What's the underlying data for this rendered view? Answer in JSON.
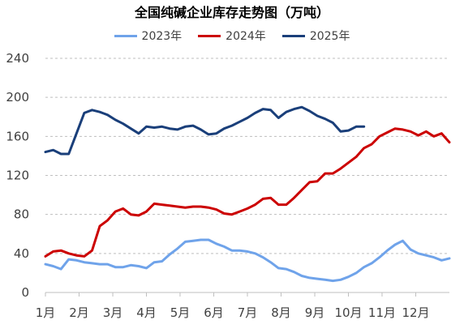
{
  "chart_data": {
    "type": "line",
    "title": "全国纯碱企业库存走势图（万吨）",
    "xlabel": "",
    "ylabel": "",
    "ylim": [
      0,
      240
    ],
    "yticks": [
      0,
      40,
      80,
      120,
      160,
      200,
      240
    ],
    "xlim": [
      0,
      52
    ],
    "x_tick_labels": [
      "1月",
      "2月",
      "3月",
      "4月",
      "5月",
      "6月",
      "7月",
      "8月",
      "9月",
      "10月",
      "11月",
      "12月"
    ],
    "x_tick_weeks": [
      0,
      4.33,
      8.67,
      13,
      17.33,
      21.67,
      26,
      30.33,
      34.67,
      39,
      43.33,
      47.67
    ],
    "grid": "horizontal dashed",
    "legend_position": "top",
    "series": [
      {
        "name": "2023年",
        "color": "#6fa3ea",
        "x": [
          0,
          1,
          2,
          3,
          4,
          5,
          6,
          7,
          8,
          9,
          10,
          11,
          12,
          13,
          14,
          15,
          16,
          17,
          18,
          19,
          20,
          21,
          22,
          23,
          24,
          25,
          26,
          27,
          28,
          29,
          30,
          31,
          32,
          33,
          34,
          35,
          36,
          37,
          38,
          39,
          40,
          41,
          42,
          43,
          44,
          45,
          46,
          47,
          48,
          49,
          50,
          51,
          52
        ],
        "values": [
          29,
          27,
          24,
          34,
          33,
          31,
          30,
          29,
          29,
          26,
          26,
          28,
          27,
          25,
          31,
          32,
          39,
          45,
          52,
          53,
          54,
          54,
          50,
          47,
          43,
          43,
          42,
          40,
          36,
          31,
          25,
          24,
          21,
          17,
          15,
          14,
          13,
          12,
          13,
          16,
          20,
          26,
          30,
          36,
          43,
          49,
          53,
          44,
          40,
          38,
          36,
          33,
          35
        ]
      },
      {
        "name": "2024年",
        "color": "#cc0000",
        "x": [
          0,
          1,
          2,
          3,
          4,
          5,
          6,
          7,
          8,
          9,
          10,
          11,
          12,
          13,
          14,
          15,
          16,
          17,
          18,
          19,
          20,
          21,
          22,
          23,
          24,
          25,
          26,
          27,
          28,
          29,
          30,
          31,
          32,
          33,
          34,
          35,
          36,
          37,
          38,
          39,
          40,
          41,
          42,
          43,
          44,
          45,
          46,
          47,
          48,
          49,
          50,
          51,
          52
        ],
        "values": [
          37,
          42,
          43,
          40,
          38,
          37,
          43,
          68,
          74,
          83,
          86,
          80,
          79,
          83,
          91,
          90,
          89,
          88,
          87,
          88,
          88,
          87,
          85,
          81,
          80,
          83,
          86,
          90,
          96,
          97,
          90,
          90,
          97,
          105,
          113,
          114,
          122,
          122,
          127,
          133,
          139,
          148,
          152,
          160,
          164,
          168,
          167,
          165,
          161,
          165,
          160,
          163,
          154
        ]
      },
      {
        "name": "2025年",
        "color": "#1a3f7a",
        "x": [
          0,
          1,
          2,
          3,
          4,
          5,
          6,
          7,
          8,
          9,
          10,
          11,
          12,
          13,
          14,
          15,
          16,
          17,
          18,
          19,
          20,
          21,
          22,
          23,
          24,
          25,
          26,
          27,
          28,
          29,
          30,
          31,
          32,
          33,
          34,
          35,
          36,
          37,
          38,
          39,
          40,
          41
        ],
        "values": [
          144,
          146,
          142,
          142,
          163,
          184,
          187,
          185,
          182,
          177,
          173,
          168,
          163,
          170,
          169,
          170,
          168,
          167,
          170,
          171,
          167,
          162,
          163,
          168,
          171,
          175,
          179,
          184,
          188,
          187,
          179,
          185,
          188,
          190,
          186,
          181,
          178,
          174,
          165,
          166,
          170,
          170
        ]
      }
    ]
  }
}
